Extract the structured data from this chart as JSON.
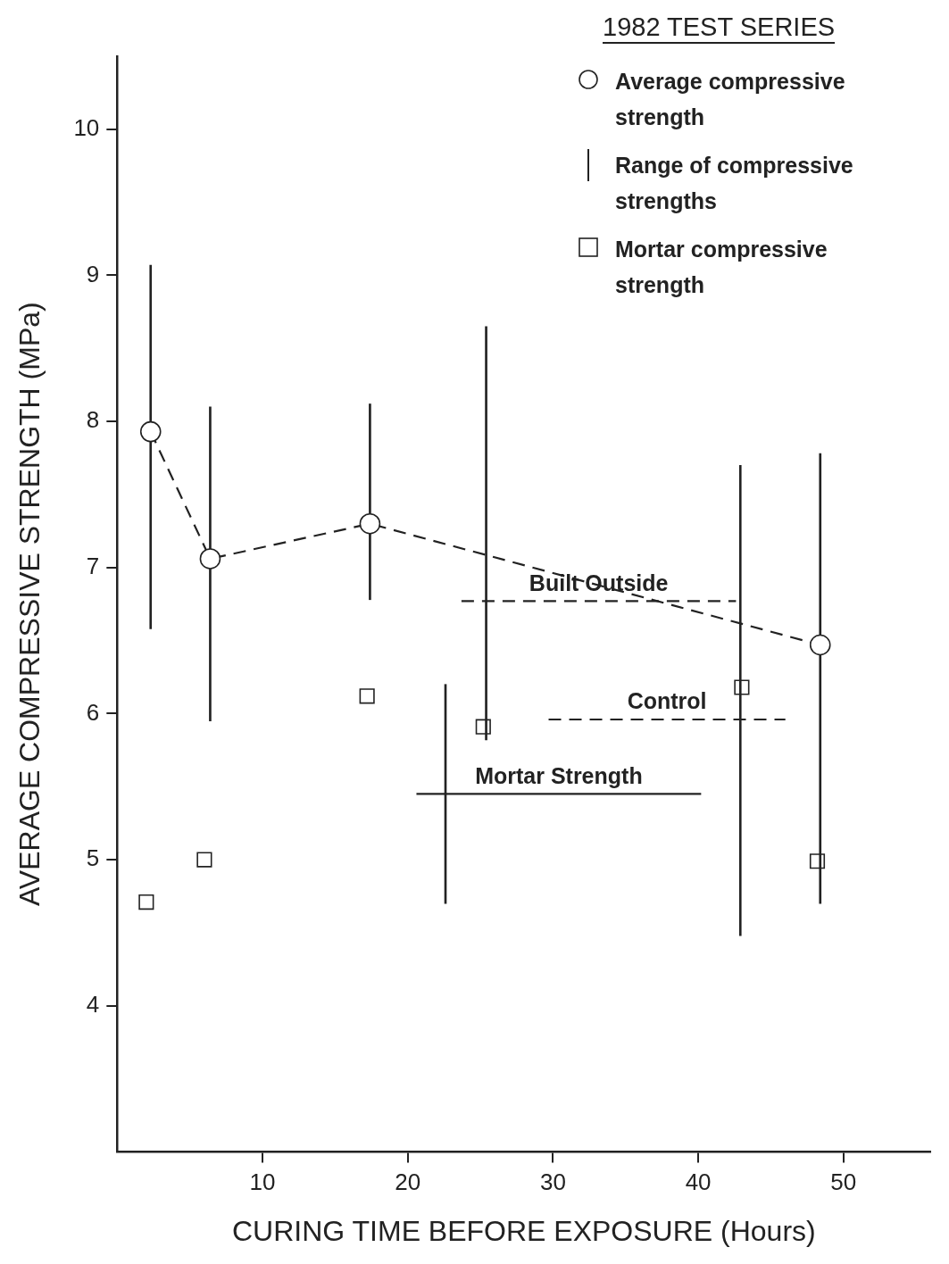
{
  "chart_data": {
    "type": "scatter",
    "legend_title": "1982 TEST SERIES",
    "xlabel": "CURING TIME BEFORE EXPOSURE (Hours)",
    "ylabel": "AVERAGE COMPRESSIVE STRENGTH (MPa)",
    "xlim": [
      0,
      56
    ],
    "xticks": [
      10,
      20,
      30,
      40,
      50
    ],
    "ylim": [
      3,
      10.5
    ],
    "yticks": [
      4,
      5,
      6,
      7,
      8,
      9,
      10
    ],
    "legend": "top right",
    "series": [
      {
        "name": "Average compressive strength",
        "type": "line",
        "marker": "circle",
        "line_style": "dashed",
        "color": "#222222",
        "x": [
          2.3,
          6.4,
          17.4,
          48.4
        ],
        "values": [
          7.93,
          7.06,
          7.3,
          6.47
        ]
      },
      {
        "name": "Range of compressive strengths",
        "type": "bar",
        "color": "#222222",
        "x": [
          2.3,
          6.4,
          17.4,
          22.6,
          25.4,
          42.9,
          48.4
        ],
        "base": [
          6.58,
          5.95,
          6.78,
          4.7,
          5.82,
          4.48,
          4.7
        ],
        "values": [
          2.49,
          2.15,
          1.34,
          1.5,
          2.83,
          3.22,
          3.08
        ]
      },
      {
        "name": "Mortar compressive strength",
        "marker": "square",
        "color": "#222222",
        "x": [
          2.0,
          6.0,
          17.2,
          25.2,
          43.0,
          48.2
        ],
        "values": [
          4.71,
          5.0,
          6.12,
          5.91,
          6.18,
          4.99
        ]
      },
      {
        "name": "Built Outside",
        "type": "line",
        "marker": "none",
        "line_style": "dashed",
        "color": "#222222",
        "x": [
          23.7,
          42.6
        ],
        "values": [
          6.77,
          6.77
        ]
      },
      {
        "name": "Control",
        "type": "line",
        "marker": "none",
        "line_style": "dashed",
        "color": "#222222",
        "x": [
          29.7,
          46.0
        ],
        "values": [
          5.96,
          5.96
        ]
      },
      {
        "name": "Mortar Strength",
        "type": "line",
        "marker": "none",
        "line_style": "solid",
        "color": "#222222",
        "x": [
          20.6,
          40.2
        ],
        "values": [
          5.45,
          5.45
        ]
      }
    ]
  }
}
